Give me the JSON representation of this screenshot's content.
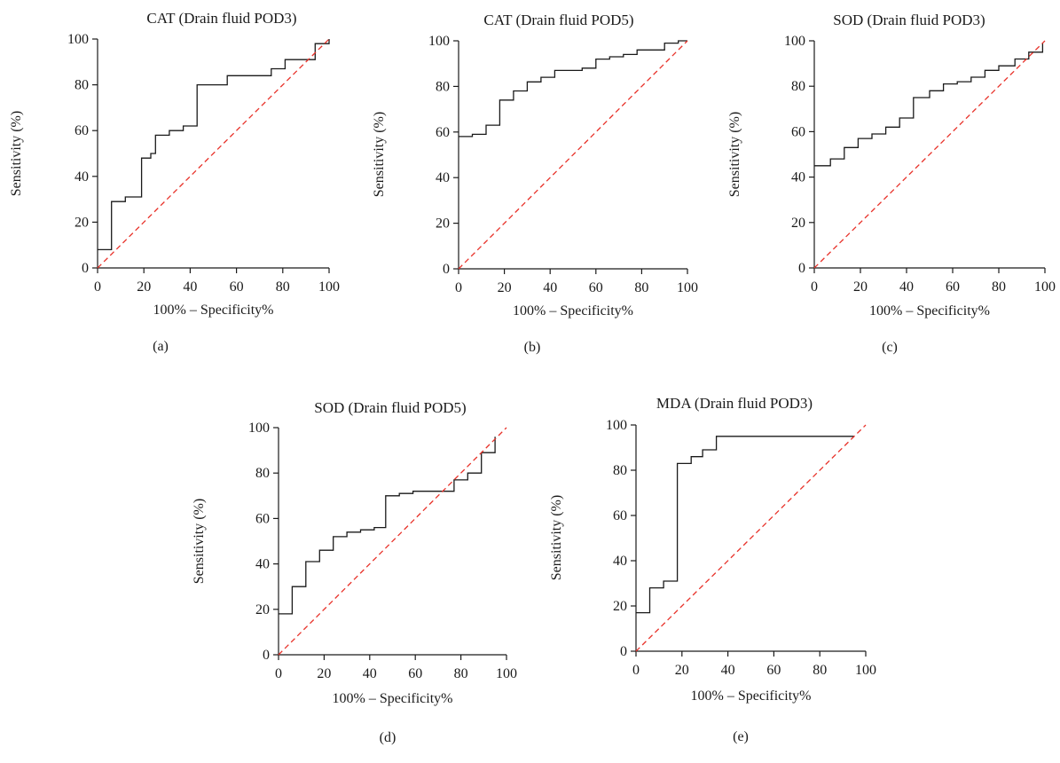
{
  "colors": {
    "roc": "#1a1a1a",
    "reference": "#e8322a"
  },
  "chart_data": [
    {
      "type": "line",
      "panel": "(a)",
      "title": "CAT (Drain fluid POD3)",
      "xlabel": "100% – Specificity%",
      "ylabel": "Sensitivity (%)",
      "xlim": [
        0,
        100
      ],
      "ylim": [
        0,
        100
      ],
      "x_ticks": [
        0,
        20,
        40,
        60,
        80,
        100
      ],
      "y_ticks": [
        0,
        20,
        40,
        60,
        80,
        100
      ],
      "grid": false,
      "series": [
        {
          "role": "roc",
          "x": [
            0,
            6,
            6,
            12,
            12,
            19,
            19,
            23,
            23,
            25,
            25,
            31,
            31,
            37,
            37,
            43,
            43,
            56,
            56,
            75,
            75,
            81,
            81,
            94,
            94,
            100,
            100
          ],
          "y": [
            8,
            8,
            29,
            29,
            31,
            31,
            48,
            48,
            50,
            50,
            58,
            58,
            60,
            60,
            62,
            62,
            80,
            80,
            84,
            84,
            87,
            87,
            91,
            91,
            98,
            98,
            100
          ]
        },
        {
          "role": "reference",
          "x": [
            0,
            100
          ],
          "y": [
            0,
            100
          ]
        }
      ]
    },
    {
      "type": "line",
      "panel": "(b)",
      "title": "CAT (Drain fluid POD5)",
      "xlabel": "100% – Specificity%",
      "ylabel": "Sensitivity (%)",
      "xlim": [
        0,
        100
      ],
      "ylim": [
        0,
        100
      ],
      "x_ticks": [
        0,
        20,
        40,
        60,
        80,
        100
      ],
      "y_ticks": [
        0,
        20,
        40,
        60,
        80,
        100
      ],
      "grid": false,
      "series": [
        {
          "role": "roc",
          "x": [
            0,
            6,
            6,
            12,
            12,
            18,
            18,
            24,
            24,
            30,
            30,
            36,
            36,
            42,
            42,
            54,
            54,
            60,
            60,
            66,
            66,
            72,
            72,
            78,
            78,
            90,
            90,
            96,
            96,
            100
          ],
          "y": [
            58,
            58,
            59,
            59,
            63,
            63,
            74,
            74,
            78,
            78,
            82,
            82,
            84,
            84,
            87,
            87,
            88,
            88,
            92,
            92,
            93,
            93,
            94,
            94,
            96,
            96,
            99,
            99,
            100,
            100
          ]
        },
        {
          "role": "reference",
          "x": [
            0,
            100
          ],
          "y": [
            0,
            100
          ]
        }
      ]
    },
    {
      "type": "line",
      "panel": "(c)",
      "title": "SOD (Drain fluid POD3)",
      "xlabel": "100% – Specificity%",
      "ylabel": "Sensitivity (%)",
      "xlim": [
        0,
        100
      ],
      "ylim": [
        0,
        100
      ],
      "x_ticks": [
        0,
        20,
        40,
        60,
        80,
        100
      ],
      "y_ticks": [
        0,
        20,
        40,
        60,
        80,
        100
      ],
      "grid": false,
      "series": [
        {
          "role": "roc",
          "x": [
            0,
            7,
            7,
            13,
            13,
            19,
            19,
            25,
            25,
            31,
            31,
            37,
            37,
            43,
            43,
            50,
            50,
            56,
            56,
            62,
            62,
            68,
            68,
            74,
            74,
            80,
            80,
            87,
            87,
            93,
            93,
            99,
            99
          ],
          "y": [
            45,
            45,
            48,
            48,
            53,
            53,
            57,
            57,
            59,
            59,
            62,
            62,
            66,
            66,
            75,
            75,
            78,
            78,
            81,
            81,
            82,
            82,
            84,
            84,
            87,
            87,
            89,
            89,
            92,
            92,
            95,
            95,
            99
          ]
        },
        {
          "role": "reference",
          "x": [
            0,
            100
          ],
          "y": [
            0,
            100
          ]
        }
      ]
    },
    {
      "type": "line",
      "panel": "(d)",
      "title": "SOD (Drain fluid POD5)",
      "xlabel": "100% – Specificity%",
      "ylabel": "Sensitivity (%)",
      "xlim": [
        0,
        100
      ],
      "ylim": [
        0,
        100
      ],
      "x_ticks": [
        0,
        20,
        40,
        60,
        80,
        100
      ],
      "y_ticks": [
        0,
        20,
        40,
        60,
        80,
        100
      ],
      "grid": false,
      "series": [
        {
          "role": "roc",
          "x": [
            0,
            6,
            6,
            12,
            12,
            18,
            18,
            24,
            24,
            30,
            30,
            36,
            36,
            42,
            42,
            47,
            47,
            53,
            53,
            59,
            59,
            77,
            77,
            83,
            83,
            89,
            89,
            95,
            95
          ],
          "y": [
            18,
            18,
            30,
            30,
            41,
            41,
            46,
            46,
            52,
            52,
            54,
            54,
            55,
            55,
            56,
            56,
            70,
            70,
            71,
            71,
            72,
            72,
            77,
            77,
            80,
            80,
            89,
            89,
            96
          ]
        },
        {
          "role": "reference",
          "x": [
            0,
            100
          ],
          "y": [
            0,
            100
          ]
        }
      ]
    },
    {
      "type": "line",
      "panel": "(e)",
      "title": "MDA (Drain fluid POD3)",
      "xlabel": "100% – Specificity%",
      "ylabel": "Sensitivity (%)",
      "xlim": [
        0,
        100
      ],
      "ylim": [
        0,
        100
      ],
      "x_ticks": [
        0,
        20,
        40,
        60,
        80,
        100
      ],
      "y_ticks": [
        0,
        20,
        40,
        60,
        80,
        100
      ],
      "grid": false,
      "series": [
        {
          "role": "roc",
          "x": [
            0,
            6,
            6,
            12,
            12,
            18,
            18,
            24,
            24,
            29,
            29,
            35,
            35,
            95
          ],
          "y": [
            17,
            17,
            28,
            28,
            31,
            31,
            83,
            83,
            86,
            86,
            89,
            89,
            95,
            95
          ]
        },
        {
          "role": "reference",
          "x": [
            0,
            100
          ],
          "y": [
            0,
            100
          ]
        }
      ]
    }
  ]
}
